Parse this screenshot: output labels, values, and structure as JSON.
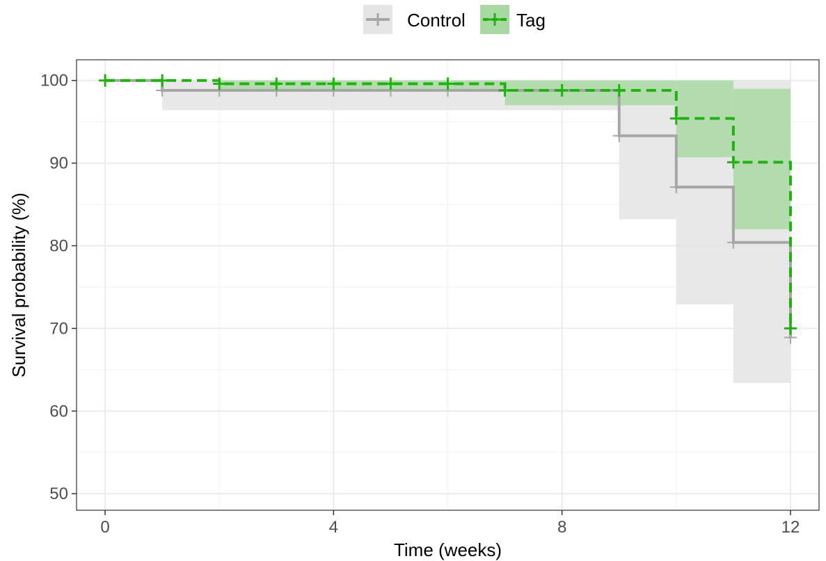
{
  "chart_data": {
    "type": "line",
    "subtype": "kaplan-meier step survival curve with confidence bands",
    "xlabel": "Time (weeks)",
    "ylabel": "Survival probability (%)",
    "xlim": [
      -0.5,
      12.5
    ],
    "ylim": [
      48,
      102.5
    ],
    "x_ticks": [
      0,
      4,
      8,
      12
    ],
    "y_ticks": [
      50,
      60,
      70,
      80,
      90,
      100
    ],
    "grid": true,
    "legend_position": "top",
    "series": [
      {
        "name": "Control",
        "color": "#a6a6a6",
        "band_color": "#e5e5e5",
        "line_style": "solid",
        "steps": [
          {
            "x": 0,
            "y": 100
          },
          {
            "x": 1,
            "y": 98.8
          },
          {
            "x": 9,
            "y": 93.3
          },
          {
            "x": 10,
            "y": 87.1
          },
          {
            "x": 11,
            "y": 80.4
          },
          {
            "x": 12,
            "y": 68.9
          }
        ],
        "band": [
          {
            "x0": 0,
            "x1": 1,
            "lo": 100,
            "hi": 100
          },
          {
            "x0": 1,
            "x1": 9,
            "lo": 96.4,
            "hi": 100
          },
          {
            "x0": 9,
            "x1": 10,
            "lo": 83.2,
            "hi": 100
          },
          {
            "x0": 10,
            "x1": 11,
            "lo": 72.9,
            "hi": 100
          },
          {
            "x0": 11,
            "x1": 12,
            "lo": 63.4,
            "hi": 100
          }
        ],
        "censor_x": [
          1,
          2,
          3,
          4,
          5,
          6,
          7,
          8,
          9,
          10,
          11,
          12
        ]
      },
      {
        "name": "Tag",
        "color": "#22b014",
        "band_color": "#a8d9a2",
        "line_style": "dashed",
        "steps": [
          {
            "x": 0,
            "y": 100
          },
          {
            "x": 2,
            "y": 99.6
          },
          {
            "x": 7,
            "y": 98.8
          },
          {
            "x": 10,
            "y": 95.4
          },
          {
            "x": 11,
            "y": 90.1
          },
          {
            "x": 12,
            "y": 70.0
          }
        ],
        "band": [
          {
            "x0": 0,
            "x1": 2,
            "lo": 100,
            "hi": 100
          },
          {
            "x0": 2,
            "x1": 7,
            "lo": 98.8,
            "hi": 100
          },
          {
            "x0": 7,
            "x1": 10,
            "lo": 97.0,
            "hi": 100
          },
          {
            "x0": 10,
            "x1": 11,
            "lo": 90.7,
            "hi": 100
          },
          {
            "x0": 11,
            "x1": 12,
            "lo": 82.0,
            "hi": 99.0
          }
        ],
        "censor_x": [
          0,
          1,
          2,
          3,
          4,
          5,
          6,
          7,
          8,
          9,
          10,
          11,
          12
        ]
      }
    ]
  }
}
